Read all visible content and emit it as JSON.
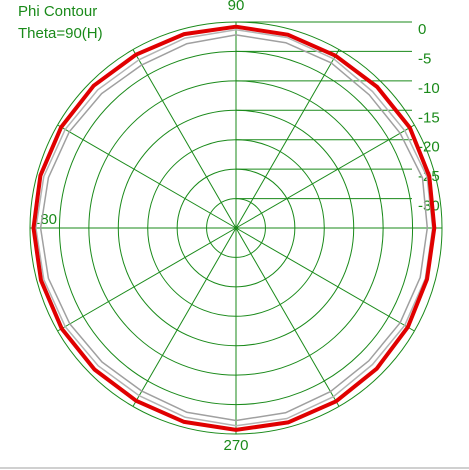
{
  "chart_data": {
    "type": "polar",
    "title": "Phi Contour",
    "subtitle": "Theta=90(H)",
    "theta": [
      0,
      15,
      30,
      45,
      60,
      75,
      90,
      105,
      120,
      135,
      150,
      165,
      180,
      195,
      210,
      225,
      240,
      255,
      270,
      285,
      300,
      315,
      330,
      345
    ],
    "series": [
      {
        "color": "#a0a0a0",
        "values": [
          -2.5,
          -2.2,
          -2.8,
          -3.0,
          -2.6,
          -2.4,
          -2.2,
          -2.6,
          -3.0,
          -2.7,
          -2.3,
          -2.0,
          -1.8,
          -2.0,
          -2.4,
          -2.8,
          -3.0,
          -2.6,
          -2.3,
          -2.5,
          -2.9,
          -3.1,
          -2.8,
          -2.6
        ]
      },
      {
        "color": "#b4b4b4",
        "values": [
          -1.6,
          -1.4,
          -1.9,
          -2.2,
          -1.8,
          -1.5,
          -1.3,
          -1.6,
          -2.0,
          -1.8,
          -1.5,
          -1.2,
          -1.0,
          -1.2,
          -1.5,
          -1.9,
          -2.1,
          -1.7,
          -1.4,
          -1.5,
          -1.9,
          -2.2,
          -1.9,
          -1.7
        ]
      },
      {
        "color": "#e00000",
        "values": [
          -1.3,
          -1.0,
          -0.9,
          -1.1,
          -1.2,
          -1.0,
          -0.8,
          -0.9,
          -1.0,
          -0.8,
          -0.7,
          -0.6,
          -0.6,
          -0.7,
          -0.8,
          -1.0,
          -1.1,
          -0.9,
          -0.7,
          -0.8,
          -1.0,
          -1.2,
          -1.3,
          -1.4
        ]
      }
    ],
    "rlim": [
      -35,
      0
    ],
    "rticks": [
      0,
      -5,
      -10,
      -15,
      -20,
      -25,
      -30
    ],
    "thetagrid": [
      0,
      30,
      60,
      90,
      120,
      150,
      180,
      210,
      240,
      270,
      300,
      330
    ],
    "thetaticks": [
      90,
      180,
      270
    ],
    "grid_color": "#1a8a1a"
  }
}
